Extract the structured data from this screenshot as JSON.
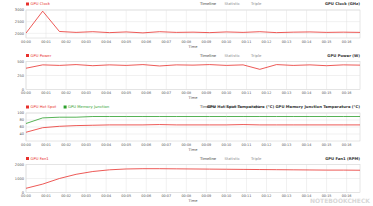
{
  "chart_data": [
    {
      "type": "line",
      "title": "GPU Clock (GHz)",
      "x_label": "Time",
      "x": [
        0,
        50,
        100,
        150,
        200,
        250,
        300,
        350,
        400,
        450,
        500,
        550,
        600,
        650,
        700,
        750,
        800,
        850,
        900,
        950,
        1000
      ],
      "series": [
        {
          "name": "GPU Clock",
          "color": "#e8302c",
          "values": [
            2010,
            2950,
            2080,
            2040,
            2070,
            2030,
            2060,
            2020,
            2070,
            2040,
            2050,
            2030,
            2060,
            2040,
            2070,
            2030,
            2050,
            2060,
            2040,
            2050,
            2040
          ]
        }
      ],
      "xlim": [
        0,
        1000
      ],
      "ylim": [
        1800,
        3000
      ],
      "yticks": [
        2000,
        2500,
        3000
      ],
      "xticks": [
        {
          "value": 0,
          "label": "00:00"
        },
        {
          "value": 60,
          "label": "00:01"
        },
        {
          "value": 120,
          "label": "00:02"
        },
        {
          "value": 180,
          "label": "00:03"
        },
        {
          "value": 240,
          "label": "00:04"
        },
        {
          "value": 300,
          "label": "00:05"
        },
        {
          "value": 360,
          "label": "00:06"
        },
        {
          "value": 420,
          "label": "00:07"
        },
        {
          "value": 480,
          "label": "00:08"
        },
        {
          "value": 540,
          "label": "00:09"
        },
        {
          "value": 600,
          "label": "00:10"
        },
        {
          "value": 660,
          "label": "00:11"
        },
        {
          "value": 720,
          "label": "00:12"
        },
        {
          "value": 780,
          "label": "00:13"
        },
        {
          "value": 840,
          "label": "00:14"
        },
        {
          "value": 900,
          "label": "00:15"
        },
        {
          "value": 960,
          "label": "00:16"
        }
      ],
      "grid": true
    },
    {
      "type": "line",
      "title": "GPU Power (W)",
      "x_label": "Time",
      "x": [
        0,
        50,
        100,
        150,
        200,
        250,
        300,
        350,
        400,
        450,
        500,
        550,
        600,
        650,
        700,
        750,
        800,
        850,
        900,
        950,
        1000
      ],
      "series": [
        {
          "name": "GPU Power",
          "color": "#e8302c",
          "values": [
            380,
            440,
            430,
            445,
            425,
            440,
            430,
            445,
            420,
            440,
            435,
            445,
            430,
            440,
            360,
            445,
            430,
            440,
            425,
            440,
            435
          ]
        }
      ],
      "xlim": [
        0,
        1000
      ],
      "ylim": [
        0,
        500
      ],
      "yticks": [
        0,
        250,
        500
      ],
      "xticks": [
        {
          "value": 0,
          "label": "00:00"
        },
        {
          "value": 60,
          "label": "00:01"
        },
        {
          "value": 120,
          "label": "00:02"
        },
        {
          "value": 180,
          "label": "00:03"
        },
        {
          "value": 240,
          "label": "00:04"
        },
        {
          "value": 300,
          "label": "00:05"
        },
        {
          "value": 360,
          "label": "00:06"
        },
        {
          "value": 420,
          "label": "00:07"
        },
        {
          "value": 480,
          "label": "00:08"
        },
        {
          "value": 540,
          "label": "00:09"
        },
        {
          "value": 600,
          "label": "00:10"
        },
        {
          "value": 660,
          "label": "00:11"
        },
        {
          "value": 720,
          "label": "00:12"
        },
        {
          "value": 780,
          "label": "00:13"
        },
        {
          "value": 840,
          "label": "00:14"
        },
        {
          "value": 900,
          "label": "00:15"
        },
        {
          "value": 960,
          "label": "00:16"
        }
      ],
      "grid": true
    },
    {
      "type": "line",
      "title": "GPU Hot Spot Temperature (°C)  GPU Memory Junction Temperature (°C)",
      "x_label": "Time",
      "x": [
        0,
        50,
        100,
        150,
        200,
        250,
        300,
        350,
        400,
        450,
        500,
        550,
        600,
        650,
        700,
        750,
        800,
        850,
        900,
        950,
        1000
      ],
      "series": [
        {
          "name": "GPU Hot Spot",
          "color": "#e8302c",
          "values": [
            45,
            58,
            62,
            64,
            65,
            66,
            66,
            66,
            67,
            66,
            66,
            66,
            66,
            67,
            66,
            66,
            66,
            66,
            66,
            66,
            66
          ]
        },
        {
          "name": "GPU Memory Junction",
          "color": "#2ca02c",
          "values": [
            70,
            86,
            88,
            88,
            90,
            90,
            90,
            90,
            90,
            90,
            90,
            90,
            90,
            90,
            90,
            90,
            90,
            90,
            90,
            90,
            90
          ]
        }
      ],
      "xlim": [
        0,
        1000
      ],
      "ylim": [
        20,
        100
      ],
      "yticks": [
        40,
        60,
        80,
        100
      ],
      "xticks": [
        {
          "value": 0,
          "label": "00:00"
        },
        {
          "value": 60,
          "label": "00:01"
        },
        {
          "value": 120,
          "label": "00:02"
        },
        {
          "value": 180,
          "label": "00:03"
        },
        {
          "value": 240,
          "label": "00:04"
        },
        {
          "value": 300,
          "label": "00:05"
        },
        {
          "value": 360,
          "label": "00:06"
        },
        {
          "value": 420,
          "label": "00:07"
        },
        {
          "value": 480,
          "label": "00:08"
        },
        {
          "value": 540,
          "label": "00:09"
        },
        {
          "value": 600,
          "label": "00:10"
        },
        {
          "value": 660,
          "label": "00:11"
        },
        {
          "value": 720,
          "label": "00:12"
        },
        {
          "value": 780,
          "label": "00:13"
        },
        {
          "value": 840,
          "label": "00:14"
        },
        {
          "value": 900,
          "label": "00:15"
        },
        {
          "value": 960,
          "label": "00:16"
        }
      ],
      "grid": true
    },
    {
      "type": "line",
      "title": "GPU Fan1 (RPM)",
      "x_label": "Time",
      "x": [
        0,
        50,
        100,
        150,
        200,
        250,
        300,
        350,
        400,
        450,
        500,
        550,
        600,
        650,
        700,
        750,
        800,
        850,
        900,
        950,
        1000
      ],
      "series": [
        {
          "name": "GPU Fan1",
          "color": "#e8302c",
          "values": [
            300,
            600,
            1000,
            1300,
            1500,
            1620,
            1680,
            1700,
            1700,
            1690,
            1680,
            1670,
            1660,
            1650,
            1640,
            1630,
            1620,
            1610,
            1600,
            1600,
            1590
          ]
        }
      ],
      "xlim": [
        0,
        1000
      ],
      "ylim": [
        0,
        2000
      ],
      "yticks": [
        0,
        1000,
        2000
      ],
      "xticks": [
        {
          "value": 0,
          "label": "00:00"
        },
        {
          "value": 60,
          "label": "00:01"
        },
        {
          "value": 120,
          "label": "00:02"
        },
        {
          "value": 180,
          "label": "00:03"
        },
        {
          "value": 240,
          "label": "00:04"
        },
        {
          "value": 300,
          "label": "00:05"
        },
        {
          "value": 360,
          "label": "00:06"
        },
        {
          "value": 420,
          "label": "00:07"
        },
        {
          "value": 480,
          "label": "00:08"
        },
        {
          "value": 540,
          "label": "00:09"
        },
        {
          "value": 600,
          "label": "00:10"
        },
        {
          "value": 660,
          "label": "00:11"
        },
        {
          "value": 720,
          "label": "00:12"
        },
        {
          "value": 780,
          "label": "00:13"
        },
        {
          "value": 840,
          "label": "00:14"
        },
        {
          "value": 900,
          "label": "00:15"
        },
        {
          "value": 960,
          "label": "00:16"
        }
      ],
      "grid": true
    }
  ],
  "tabs": [
    "Timeline",
    "Statistic",
    "Triple"
  ],
  "watermark": "NOTEBOOKCHECK"
}
